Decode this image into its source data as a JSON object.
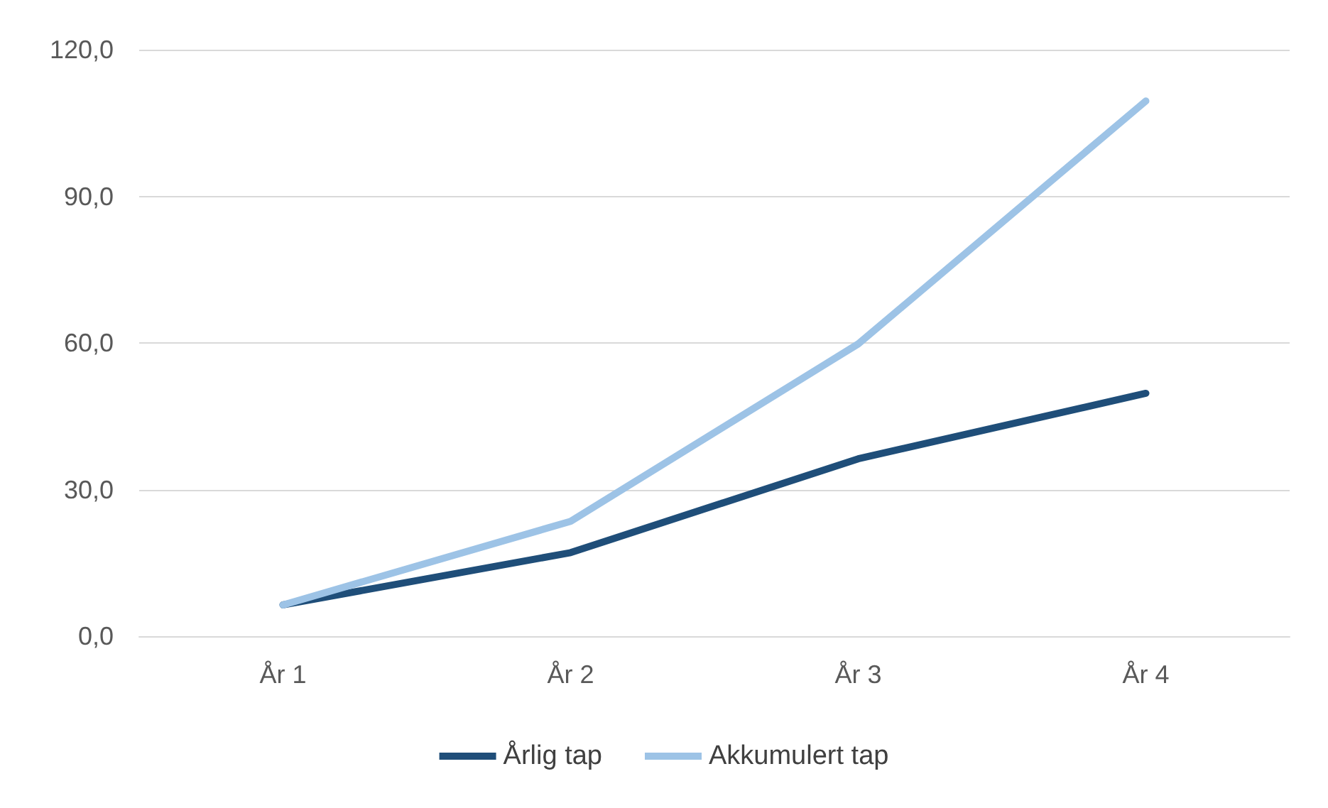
{
  "chart_data": {
    "type": "line",
    "categories": [
      "År 1",
      "År 2",
      "År 3",
      "År 4"
    ],
    "series": [
      {
        "name": "Årlig tap",
        "color": "#1f4e79",
        "values": [
          6.4,
          17.1,
          36.3,
          49.7
        ]
      },
      {
        "name": "Akkumulert tap",
        "color": "#9dc3e6",
        "values": [
          6.4,
          23.5,
          59.8,
          109.5
        ]
      }
    ],
    "ylim": [
      0,
      120
    ],
    "yticks": [
      {
        "value": 0,
        "label": "0,0"
      },
      {
        "value": 30,
        "label": "30,0"
      },
      {
        "value": 60,
        "label": "60,0"
      },
      {
        "value": 90,
        "label": "90,0"
      },
      {
        "value": 120,
        "label": "120,0"
      }
    ],
    "grid": "y",
    "legend": "bottom",
    "marker": "none",
    "line_style": "solid"
  }
}
